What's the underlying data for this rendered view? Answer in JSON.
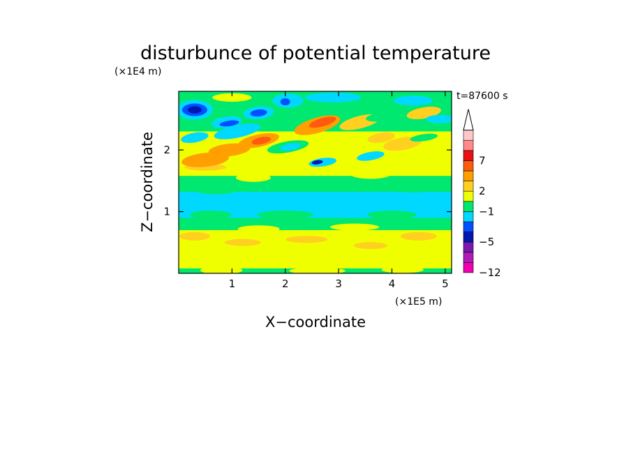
{
  "chart_data": {
    "type": "heatmap",
    "title": "disturbunce of potential temperature",
    "time_label": "t=87600 s",
    "xlabel": "X−coordinate",
    "ylabel": "Z−coordinate",
    "x_scale_label": "(×1E5 m)",
    "y_scale_label": "(×1E4 m)",
    "xlim": [
      0,
      5.12
    ],
    "ylim": [
      0,
      2.95
    ],
    "x_ticks": [
      1,
      2,
      3,
      4,
      5
    ],
    "x_tick_labels": [
      "1",
      "2",
      "3",
      "4",
      "5"
    ],
    "y_ticks": [
      1,
      2
    ],
    "y_tick_labels": [
      "1",
      "2"
    ],
    "colorbar": {
      "levels": [
        "−12",
        "−5",
        "−1",
        "2",
        "7"
      ],
      "level_positions": [
        0,
        3,
        6,
        8,
        11
      ],
      "colors": [
        "#f000b0",
        "#b01cb8",
        "#7a18b0",
        "#0018b0",
        "#0050ff",
        "#00d8ff",
        "#00e870",
        "#f0ff00",
        "#ffd020",
        "#ffa000",
        "#ff5a10",
        "#e81010",
        "#ff8a8a",
        "#ffc8c8"
      ],
      "extend": "max"
    },
    "field_layers": [
      {
        "z": [
          0.0,
          0.08
        ],
        "dominant": "green"
      },
      {
        "z": [
          0.08,
          0.7
        ],
        "dominant": "yellow"
      },
      {
        "z": [
          0.7,
          0.9
        ],
        "dominant": "green"
      },
      {
        "z": [
          0.9,
          1.3
        ],
        "dominant": "cyan"
      },
      {
        "z": [
          1.3,
          1.6
        ],
        "dominant": "green"
      },
      {
        "z": [
          1.6,
          2.3
        ],
        "dominant": "yellow-orange"
      },
      {
        "z": [
          2.3,
          2.95
        ],
        "dominant": "cyan-blue / orange, tilted bands"
      }
    ]
  }
}
